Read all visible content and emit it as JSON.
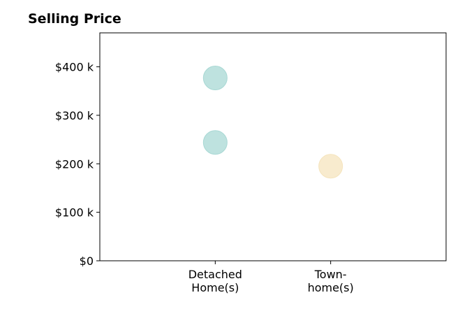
{
  "chart_data": {
    "type": "scatter",
    "title": "Selling Price",
    "categories": [
      "Detached\nHome(s)",
      "Town-\nhome(s)"
    ],
    "y_ticks": [
      "$0",
      "$100 k",
      "$200 k",
      "$300 k",
      "$400 k"
    ],
    "tick_values": [
      0,
      100000,
      200000,
      300000,
      400000
    ],
    "ylim": [
      0,
      470000
    ],
    "grid": false,
    "points": [
      {
        "category": "Detached\nHome(s)",
        "y": 377000,
        "color": "#a8d8d4"
      },
      {
        "category": "Detached\nHome(s)",
        "y": 244000,
        "color": "#a8d8d4"
      },
      {
        "category": "Town-\nhome(s)",
        "y": 195000,
        "color": "#f5e4bd"
      }
    ]
  }
}
